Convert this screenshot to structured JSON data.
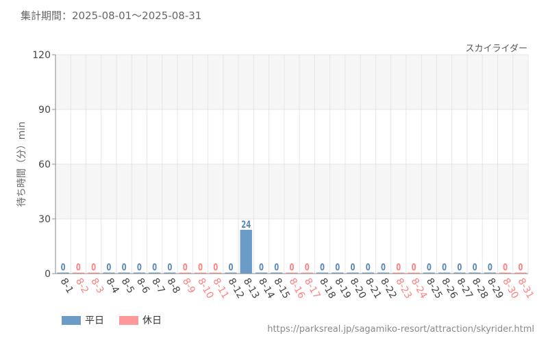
{
  "header": {
    "period_label": "集計期間：2025-08-01～2025-08-31"
  },
  "footer": {
    "source_url": "https://parksreal.jp/sagamiko-resort/attraction/skyrider.html"
  },
  "colors": {
    "weekday": "#6b9bc7",
    "holiday": "#ff9999",
    "weekday_label": "#5b87b8",
    "holiday_label": "#ff8080",
    "tick_text": "#444444"
  },
  "chart_data": {
    "type": "bar",
    "title": "スカイライダー",
    "ylabel": "待ち時間（分）min",
    "ylim": [
      0,
      120
    ],
    "yticks": [
      0,
      30,
      60,
      90,
      120
    ],
    "grid": true,
    "legend": [
      {
        "name": "平日",
        "color": "#6b9bc7"
      },
      {
        "name": "休日",
        "color": "#ff9999"
      }
    ],
    "legend_placement": "bottom-left",
    "categories": [
      "8-1",
      "8-2",
      "8-3",
      "8-4",
      "8-5",
      "8-6",
      "8-7",
      "8-8",
      "8-9",
      "8-10",
      "8-11",
      "8-12",
      "8-13",
      "8-14",
      "8-15",
      "8-16",
      "8-17",
      "8-18",
      "8-19",
      "8-20",
      "8-21",
      "8-22",
      "8-23",
      "8-24",
      "8-25",
      "8-26",
      "8-27",
      "8-28",
      "8-29",
      "8-30",
      "8-31"
    ],
    "values": [
      0,
      0,
      0,
      0,
      0,
      0,
      0,
      0,
      0,
      0,
      0,
      0,
      24,
      0,
      0,
      0,
      0,
      0,
      0,
      0,
      0,
      0,
      0,
      0,
      0,
      0,
      0,
      0,
      0,
      0,
      0
    ],
    "day_type": [
      "平日",
      "休日",
      "休日",
      "平日",
      "平日",
      "平日",
      "平日",
      "平日",
      "休日",
      "休日",
      "休日",
      "平日",
      "平日",
      "平日",
      "平日",
      "休日",
      "休日",
      "平日",
      "平日",
      "平日",
      "平日",
      "平日",
      "休日",
      "休日",
      "平日",
      "平日",
      "平日",
      "平日",
      "平日",
      "休日",
      "休日"
    ]
  }
}
